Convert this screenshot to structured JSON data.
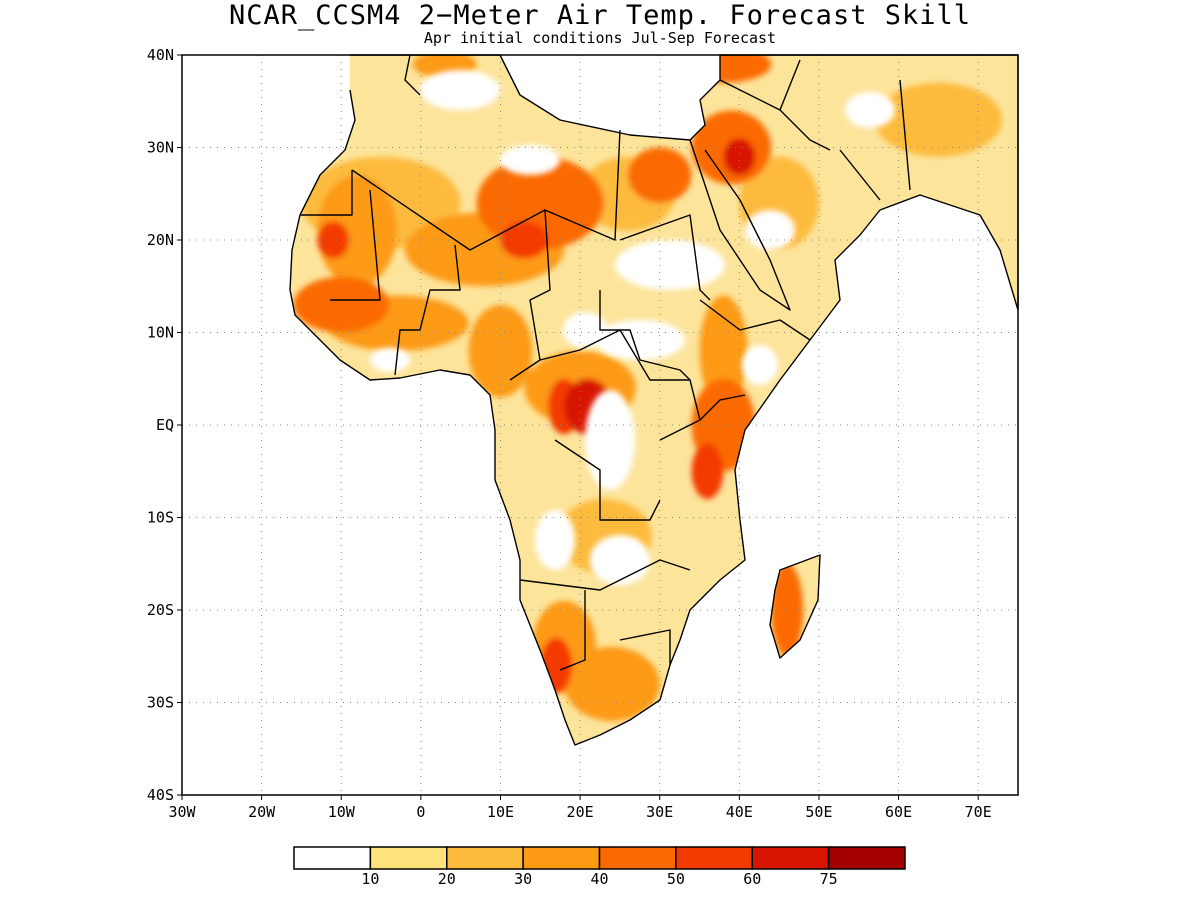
{
  "title": "NCAR_CCSM4 2−Meter Air Temp. Forecast Skill",
  "subtitle": "Apr initial conditions  Jul-Sep Forecast",
  "map": {
    "lon_range": [
      -30,
      75
    ],
    "lat_range": [
      -40,
      40
    ],
    "grid": "dotted",
    "y_ticks": [
      {
        "lat": 40,
        "label": "40N"
      },
      {
        "lat": 30,
        "label": "30N"
      },
      {
        "lat": 20,
        "label": "20N"
      },
      {
        "lat": 10,
        "label": "10N"
      },
      {
        "lat": 0,
        "label": "EQ"
      },
      {
        "lat": -10,
        "label": "10S"
      },
      {
        "lat": -20,
        "label": "20S"
      },
      {
        "lat": -30,
        "label": "30S"
      },
      {
        "lat": -40,
        "label": "40S"
      }
    ],
    "x_ticks": [
      {
        "lon": -30,
        "label": "30W"
      },
      {
        "lon": -20,
        "label": "20W"
      },
      {
        "lon": -10,
        "label": "10W"
      },
      {
        "lon": 0,
        "label": "0"
      },
      {
        "lon": 10,
        "label": "10E"
      },
      {
        "lon": 20,
        "label": "20E"
      },
      {
        "lon": 30,
        "label": "30E"
      },
      {
        "lon": 40,
        "label": "40E"
      },
      {
        "lon": 50,
        "label": "50E"
      },
      {
        "lon": 60,
        "label": "60E"
      },
      {
        "lon": 70,
        "label": "70E"
      }
    ],
    "skill_regions": [
      {
        "lon": -8,
        "lat": 21,
        "rx": 5,
        "ry": 6,
        "level": 3
      },
      {
        "lon": -11,
        "lat": 20,
        "rx": 2,
        "ry": 2,
        "level": 5
      },
      {
        "lon": -5,
        "lat": 24,
        "rx": 10,
        "ry": 5,
        "level": 2
      },
      {
        "lon": -10,
        "lat": 13,
        "rx": 6,
        "ry": 3,
        "level": 4
      },
      {
        "lon": -3,
        "lat": 11,
        "rx": 9,
        "ry": 3,
        "level": 3
      },
      {
        "lon": 8,
        "lat": 19,
        "rx": 10,
        "ry": 4,
        "level": 3
      },
      {
        "lon": 13,
        "lat": 20,
        "rx": 3,
        "ry": 2,
        "level": 5
      },
      {
        "lon": 15,
        "lat": 24,
        "rx": 8,
        "ry": 5,
        "level": 4
      },
      {
        "lon": 26,
        "lat": 25,
        "rx": 6,
        "ry": 4,
        "level": 2
      },
      {
        "lon": 30,
        "lat": 27,
        "rx": 4,
        "ry": 3,
        "level": 4
      },
      {
        "lon": 10,
        "lat": 8,
        "rx": 4,
        "ry": 5,
        "level": 3
      },
      {
        "lon": 20,
        "lat": 4,
        "rx": 7,
        "ry": 4,
        "level": 3
      },
      {
        "lon": 21,
        "lat": 2,
        "rx": 3,
        "ry": 3,
        "level": 6
      },
      {
        "lon": 18,
        "lat": 2,
        "rx": 2,
        "ry": 3,
        "level": 5
      },
      {
        "lon": 38,
        "lat": 8,
        "rx": 3,
        "ry": 6,
        "level": 3
      },
      {
        "lon": 38,
        "lat": 0,
        "rx": 4,
        "ry": 5,
        "level": 4
      },
      {
        "lon": 36,
        "lat": -5,
        "rx": 2,
        "ry": 3,
        "level": 5
      },
      {
        "lon": 23,
        "lat": -12,
        "rx": 6,
        "ry": 4,
        "level": 2
      },
      {
        "lon": 18,
        "lat": -24,
        "rx": 4,
        "ry": 5,
        "level": 3
      },
      {
        "lon": 17,
        "lat": -26,
        "rx": 2,
        "ry": 3,
        "level": 5
      },
      {
        "lon": 24,
        "lat": -28,
        "rx": 6,
        "ry": 4,
        "level": 3
      },
      {
        "lon": 46,
        "lat": -20,
        "rx": 2,
        "ry": 5,
        "level": 4
      },
      {
        "lon": 39,
        "lat": 30,
        "rx": 5,
        "ry": 4,
        "level": 4
      },
      {
        "lon": 40,
        "lat": 29,
        "rx": 2,
        "ry": 2,
        "level": 6
      },
      {
        "lon": 45,
        "lat": 24,
        "rx": 5,
        "ry": 5,
        "level": 2
      },
      {
        "lon": 65,
        "lat": 33,
        "rx": 8,
        "ry": 4,
        "level": 2
      },
      {
        "lon": 38,
        "lat": 39,
        "rx": 6,
        "ry": 2,
        "level": 4
      },
      {
        "lon": 3,
        "lat": 39,
        "rx": 4,
        "ry": 1.5,
        "level": 3
      }
    ]
  },
  "colorbar": {
    "colors": [
      "#ffffff",
      "#fee37a",
      "#fdbb3c",
      "#fd9a14",
      "#fb6a00",
      "#f33b00",
      "#d81500",
      "#a50000"
    ],
    "labels": [
      "10",
      "20",
      "30",
      "40",
      "50",
      "60",
      "75"
    ]
  }
}
